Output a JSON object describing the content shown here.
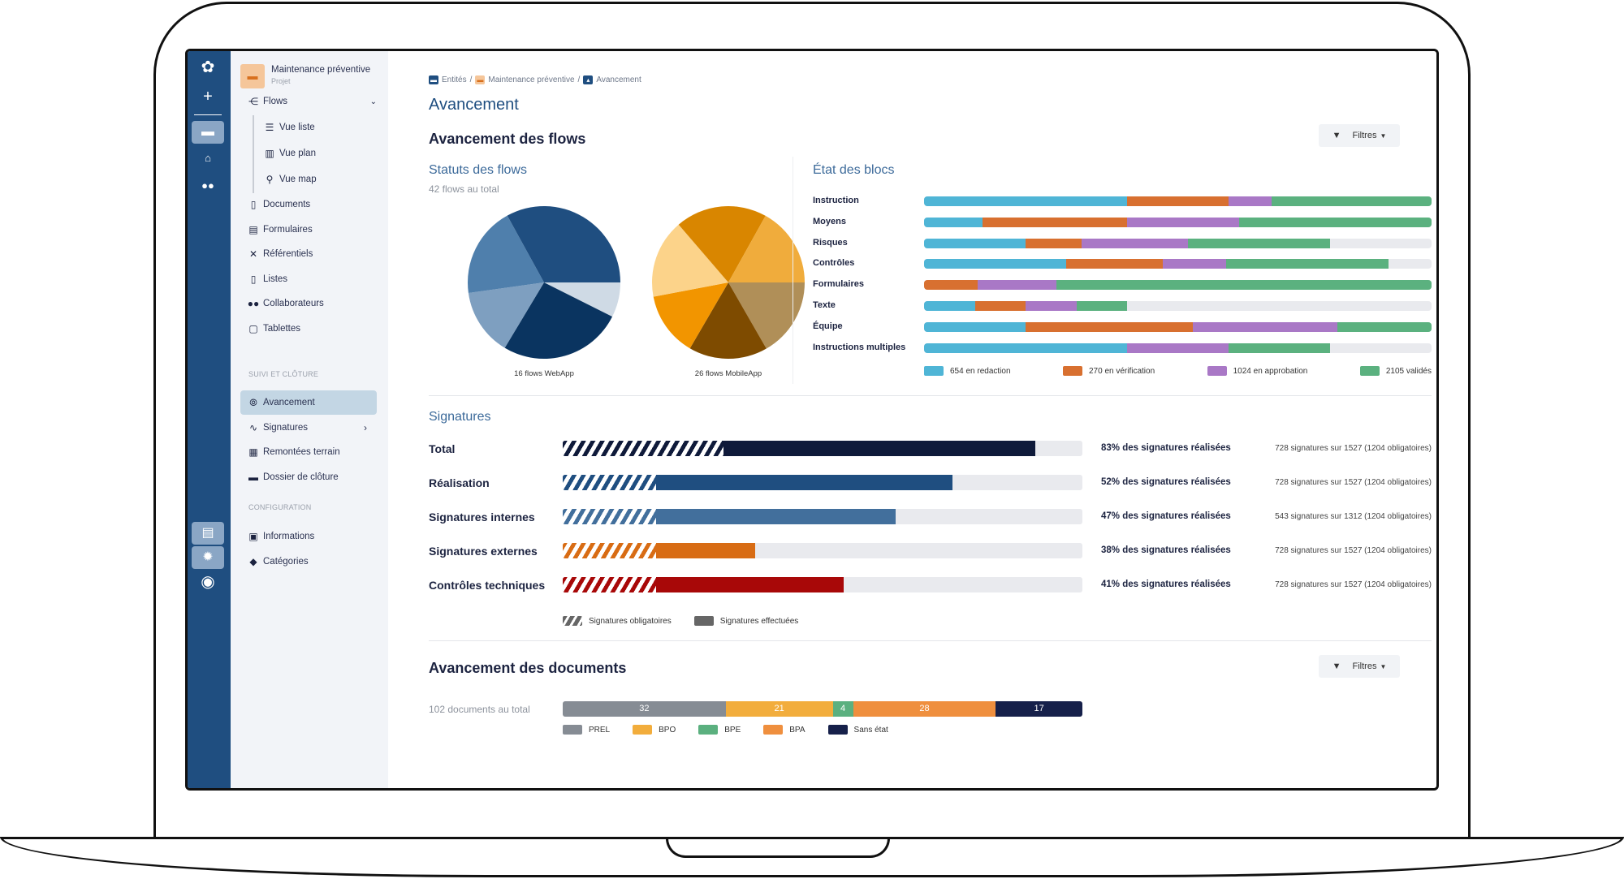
{
  "sidebar": {
    "project": {
      "name": "Maintenance préventive",
      "type": "Projet"
    },
    "items": [
      {
        "label": "Flows",
        "icon": "flows-icon"
      },
      {
        "label": "Vue liste",
        "icon": "list-icon"
      },
      {
        "label": "Vue plan",
        "icon": "map-icon"
      },
      {
        "label": "Vue map",
        "icon": "map-marker-icon"
      },
      {
        "label": "Documents",
        "icon": "document-icon"
      },
      {
        "label": "Formulaires",
        "icon": "form-icon"
      },
      {
        "label": "Référentiels",
        "icon": "tools-icon"
      },
      {
        "label": "Listes",
        "icon": "file-icon"
      },
      {
        "label": "Collaborateurs",
        "icon": "users-icon"
      },
      {
        "label": "Tablettes",
        "icon": "tablet-icon"
      }
    ],
    "section1": "SUIVI ET CLÔTURE",
    "items2": [
      {
        "label": "Avancement",
        "icon": "chart-icon"
      },
      {
        "label": "Signatures",
        "icon": "signature-icon"
      },
      {
        "label": "Remontées terrain",
        "icon": "building-icon"
      },
      {
        "label": "Dossier de clôture",
        "icon": "archive-icon"
      }
    ],
    "section2": "CONFIGURATION",
    "items3": [
      {
        "label": "Informations",
        "icon": "id-card-icon"
      },
      {
        "label": "Catégories",
        "icon": "tag-icon"
      }
    ]
  },
  "breadcrumb": [
    "Entités",
    "Maintenance préventive",
    "Avancement"
  ],
  "page_title": "Avancement",
  "flows": {
    "title": "Avancement des flows",
    "filter_label": "Filtres",
    "status_title": "Statuts des flows",
    "status_total": "42 flows au total",
    "blocs_title": "État des blocs"
  },
  "chart_data": [
    {
      "type": "pie",
      "title": "16 flows WebApp",
      "unit": "percent",
      "values": [
        7.4,
        26.2,
        14.2,
        19.2,
        33.0
      ],
      "colors": [
        "#cfdae5",
        "#0a3460",
        "#7e9fc0",
        "#4f7fac",
        "#1f4e80"
      ]
    },
    {
      "type": "pie",
      "title": "26 flows MobileApp",
      "unit": "percent",
      "values": [
        16.7,
        16.7,
        13.6,
        16.7,
        19.4,
        16.9
      ],
      "colors": [
        "#b08f58",
        "#7e4b00",
        "#f29500",
        "#fcd38a",
        "#d98600",
        "#f0ac3c"
      ]
    },
    {
      "type": "bar",
      "stacked": true,
      "orientation": "horizontal",
      "title": "État des blocs",
      "unit": "percent",
      "categories": [
        "Instruction",
        "Moyens",
        "Risques",
        "Contrôles",
        "Formulaires",
        "Texte",
        "Équipe",
        "Instructions multiples"
      ],
      "series": [
        {
          "name": "654 en redaction",
          "color": "#4fb5d6",
          "values": [
            40,
            11.5,
            20,
            28,
            0,
            10,
            20,
            40
          ]
        },
        {
          "name": "270 en vérification",
          "color": "#d87030",
          "values": [
            20,
            28.5,
            11,
            19,
            10.5,
            10,
            33,
            0
          ]
        },
        {
          "name": "1024 en approbation",
          "color": "#a978c6",
          "values": [
            8.5,
            22,
            21,
            12.5,
            15.5,
            10,
            28.5,
            20
          ]
        },
        {
          "name": "2105 validés",
          "color": "#5bb17f",
          "values": [
            31.5,
            38,
            28,
            32,
            74,
            10,
            18.5,
            20
          ]
        }
      ]
    },
    {
      "type": "bar",
      "orientation": "horizontal",
      "title": "Signatures",
      "unit": "percent",
      "categories": [
        "Total",
        "Réalisation",
        "Signatures internes",
        "Signatures externes",
        "Contrôles techniques"
      ],
      "series": [
        {
          "name": "Signatures obligatoires",
          "values": [
            31,
            18,
            18,
            18,
            18
          ]
        },
        {
          "name": "Signatures effectuées",
          "values": [
            91,
            75,
            64,
            37,
            54
          ]
        }
      ],
      "colors": [
        "#0f1a3a",
        "#1f4e80",
        "#426f9c",
        "#d86c14",
        "#a80808"
      ],
      "percent_labels": [
        "83% des signatures réalisées",
        "52% des signatures réalisées",
        "47% des signatures réalisées",
        "38% des signatures réalisées",
        "41% des signatures réalisées"
      ],
      "details": [
        "728 signatures sur 1527 (1204 obligatoires)",
        "728 signatures sur 1527 (1204 obligatoires)",
        "543 signatures sur 1312 (1204 obligatoires)",
        "728 signatures sur 1527 (1204 obligatoires)",
        "728 signatures sur 1527 (1204 obligatoires)"
      ]
    },
    {
      "type": "bar",
      "stacked": true,
      "orientation": "horizontal",
      "title": "Avancement des documents",
      "categories": [
        "PREL",
        "BPO",
        "BPE",
        "BPA",
        "Sans état"
      ],
      "values": [
        32,
        21,
        4,
        28,
        17
      ],
      "colors": [
        "#868c94",
        "#f2ad3c",
        "#5bb07f",
        "#ef8f3e",
        "#16204a"
      ]
    }
  ],
  "signatures": {
    "title": "Signatures"
  },
  "documents": {
    "title": "Avancement des documents",
    "filter_label": "Filtres",
    "total": "102 documents au total"
  }
}
